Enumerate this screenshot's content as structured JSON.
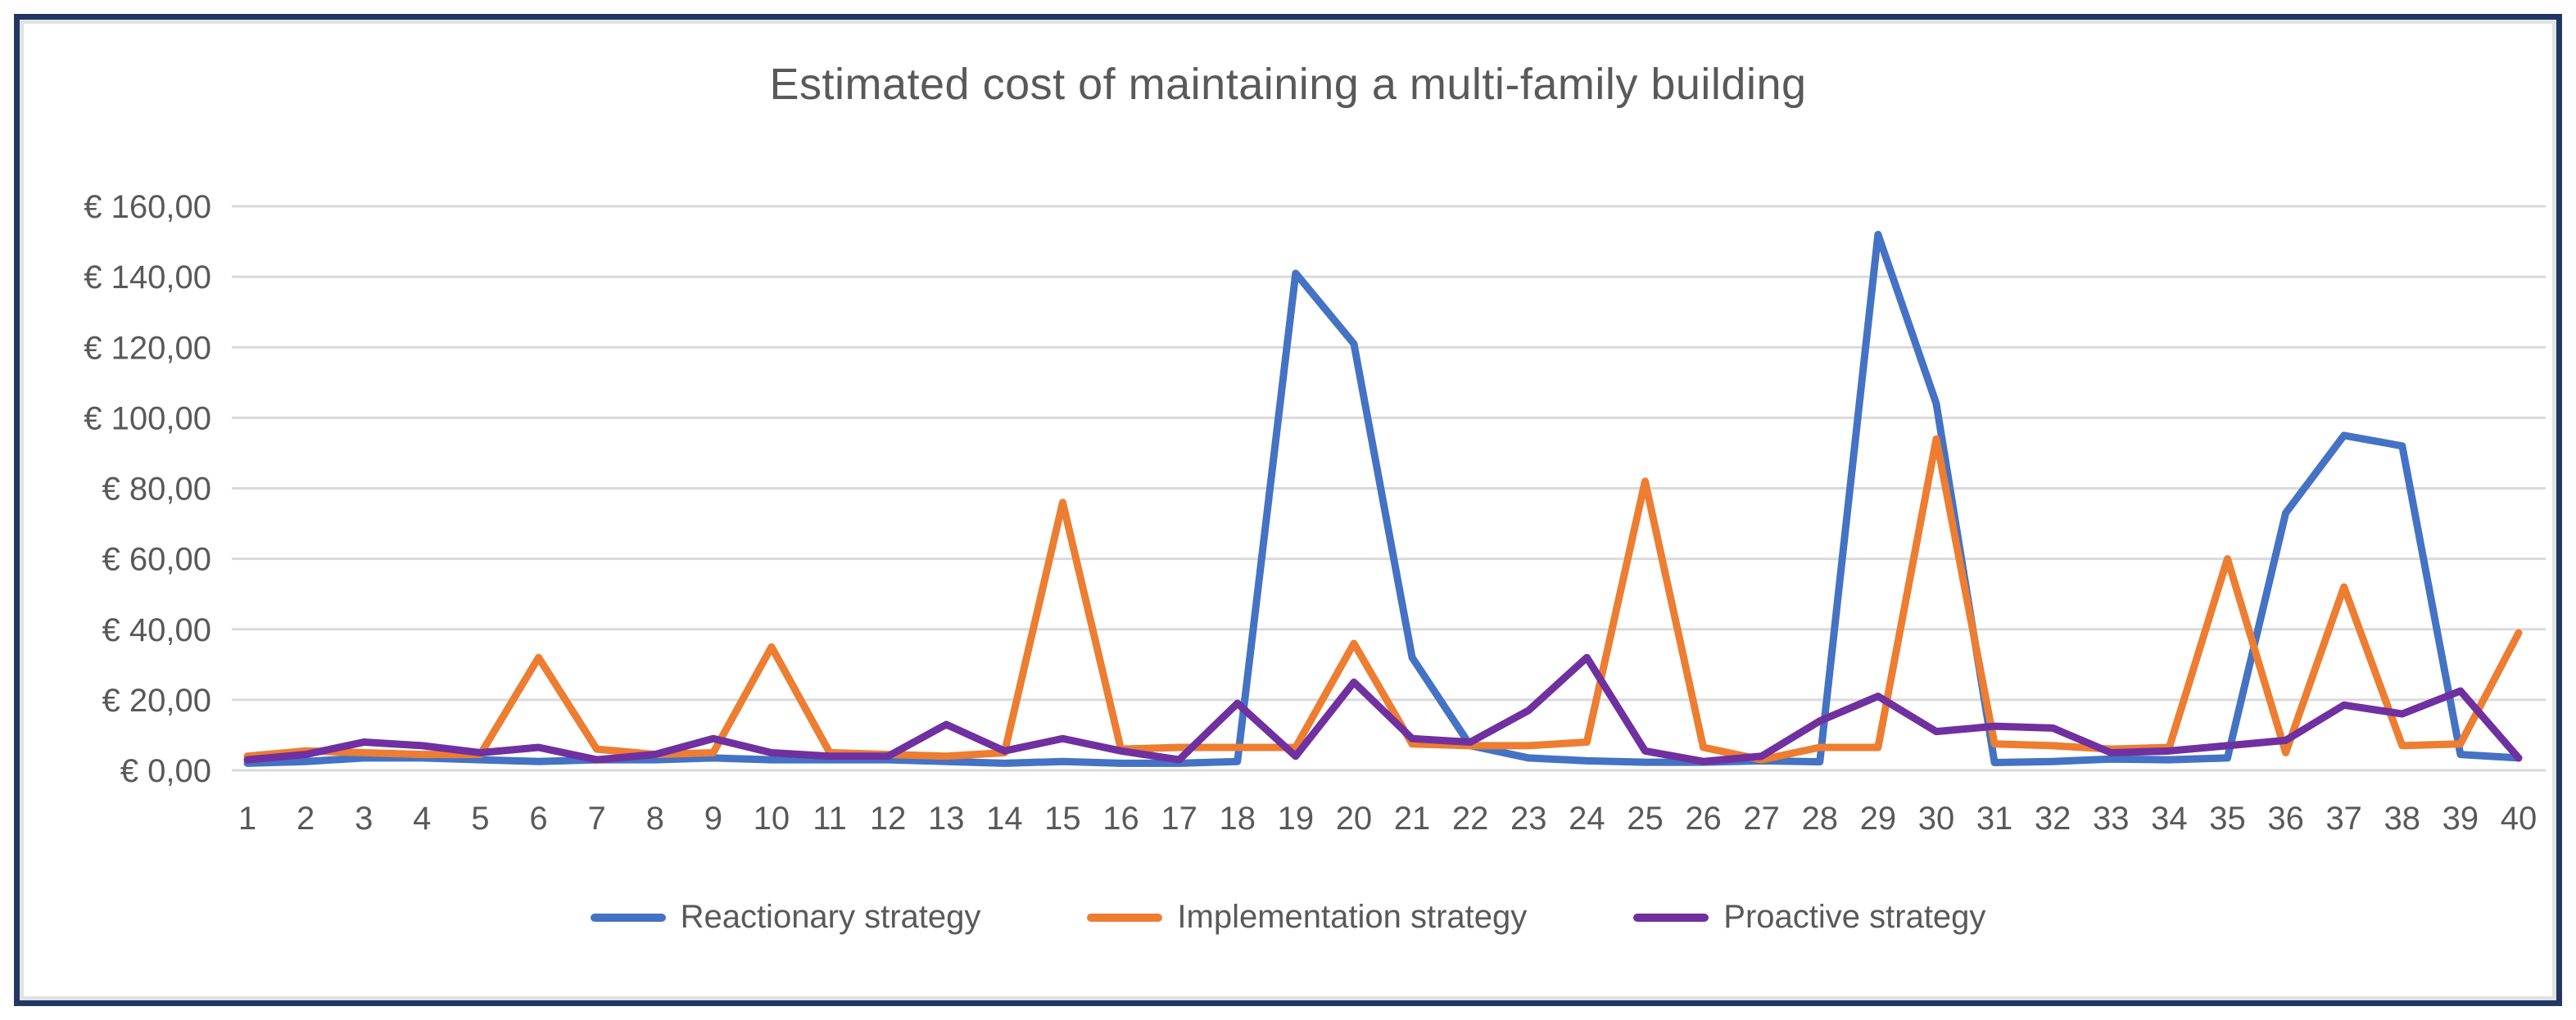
{
  "chart_data": {
    "type": "line",
    "title": "Estimated cost of maintaining a multi-family building",
    "xlabel": "",
    "ylabel": "",
    "ylim": [
      0,
      160
    ],
    "y_tick_step": 20,
    "grid": "horizontal",
    "legend_position": "bottom",
    "currency_format": "€ #.##0,00",
    "y_ticks": [
      "€ 0,00",
      "€ 20,00",
      "€ 40,00",
      "€ 60,00",
      "€ 80,00",
      "€ 100,00",
      "€ 120,00",
      "€ 140,00",
      "€ 160,00"
    ],
    "categories": [
      "1",
      "2",
      "3",
      "4",
      "5",
      "6",
      "7",
      "8",
      "9",
      "10",
      "11",
      "12",
      "13",
      "14",
      "15",
      "16",
      "17",
      "18",
      "19",
      "20",
      "21",
      "22",
      "23",
      "24",
      "25",
      "26",
      "27",
      "28",
      "29",
      "30",
      "31",
      "32",
      "33",
      "34",
      "35",
      "36",
      "37",
      "38",
      "39",
      "40"
    ],
    "series": [
      {
        "name": "Reactionary strategy",
        "color": "#4472C4",
        "values": [
          2,
          2.5,
          3.5,
          3.5,
          3,
          2.5,
          3,
          3,
          3.5,
          3,
          3,
          3,
          2.5,
          2,
          2.5,
          2,
          2,
          2.5,
          141,
          121,
          32,
          7,
          3.5,
          2.7,
          2.3,
          2.3,
          2.7,
          2.4,
          152,
          104,
          2.2,
          2.5,
          3.2,
          3,
          3.5,
          73,
          95,
          92,
          4.5,
          3.5
        ]
      },
      {
        "name": "Implementation strategy",
        "color": "#ED7D31",
        "values": [
          4,
          5.5,
          5,
          4.5,
          4.5,
          32,
          6,
          4.5,
          5,
          35,
          5,
          4.5,
          4,
          5,
          76,
          6,
          6.5,
          6.5,
          6.5,
          36,
          7.5,
          7,
          7,
          8,
          82,
          6.5,
          3,
          6.5,
          6.5,
          94,
          7.5,
          7,
          6,
          6.5,
          60,
          5,
          52,
          7,
          7.5,
          39
        ]
      },
      {
        "name": "Proactive strategy",
        "color": "#7030A0",
        "values": [
          3,
          4.5,
          8,
          7,
          5,
          6.5,
          3,
          4.5,
          9,
          5,
          4,
          4,
          13,
          5.5,
          9,
          5.5,
          3,
          19,
          4,
          25,
          9,
          8,
          17,
          32,
          5.5,
          2.5,
          4,
          14,
          21,
          11,
          12.5,
          12,
          5,
          5.5,
          7,
          8.5,
          18.5,
          16,
          22.5,
          3.5
        ]
      }
    ]
  },
  "frame": {
    "border_color": "#203864",
    "inner_line_color": "#e2e2e2"
  },
  "styles": {
    "gridline_color": "#D9D9D9",
    "text_color": "#595959"
  }
}
